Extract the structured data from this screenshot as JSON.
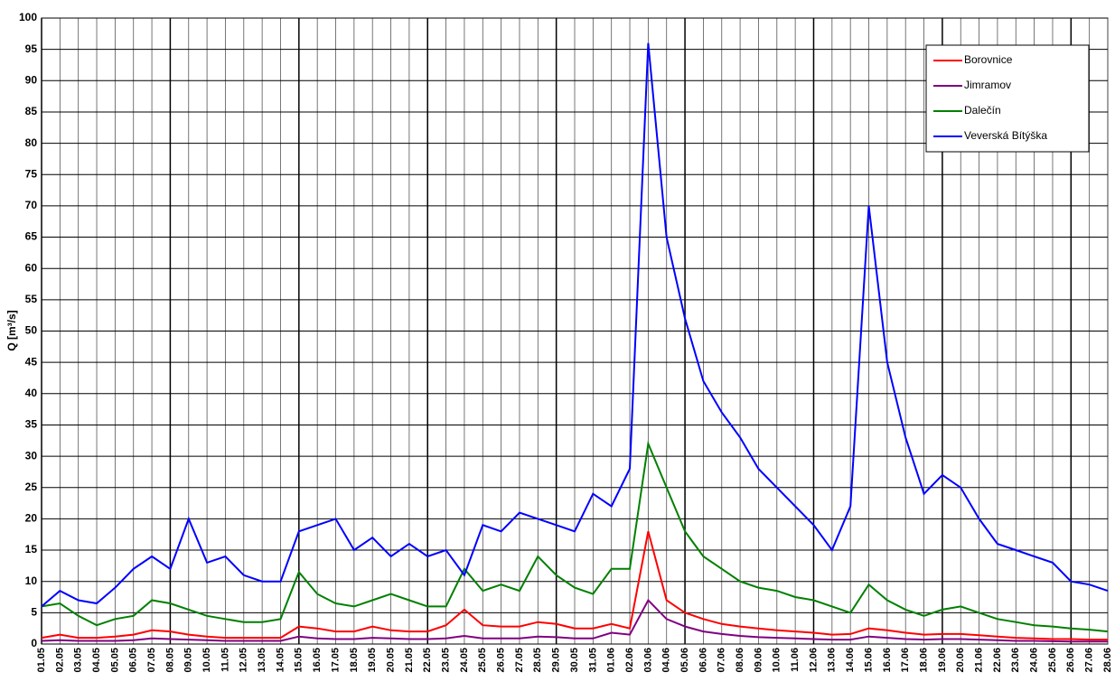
{
  "chart_data": {
    "type": "line",
    "y_label": "Q [m³/s]",
    "categories": [
      "01.05",
      "02.05",
      "03.05",
      "04.05",
      "05.05",
      "06.05",
      "07.05",
      "08.05",
      "09.05",
      "10.05",
      "11.05",
      "12.05",
      "13.05",
      "14.05",
      "15.05",
      "16.05",
      "17.05",
      "18.05",
      "19.05",
      "20.05",
      "21.05",
      "22.05",
      "23.05",
      "24.05",
      "25.05",
      "26.05",
      "27.05",
      "28.05",
      "29.05",
      "30.05",
      "31.05",
      "01.06",
      "02.06",
      "03.06",
      "04.06",
      "05.06",
      "06.06",
      "07.06",
      "08.06",
      "09.06",
      "10.06",
      "11.06",
      "12.06",
      "13.06",
      "14.06",
      "15.06",
      "16.06",
      "17.06",
      "18.06",
      "19.06",
      "20.06",
      "21.06",
      "22.06",
      "23.06",
      "24.06",
      "25.06",
      "26.06",
      "27.06",
      "28.06"
    ],
    "series": [
      {
        "name": "Borovnice",
        "color": "#ff0000",
        "values": [
          1,
          1.5,
          1,
          1,
          1.2,
          1.5,
          2.2,
          2,
          1.5,
          1.2,
          1,
          1,
          1,
          1,
          2.8,
          2.5,
          2,
          2,
          2.8,
          2.2,
          2,
          2,
          3,
          5.5,
          3,
          2.8,
          2.8,
          3.5,
          3.2,
          2.5,
          2.5,
          3.2,
          2.5,
          18,
          7,
          5,
          4,
          3.2,
          2.8,
          2.5,
          2.2,
          2,
          1.8,
          1.5,
          1.6,
          2.5,
          2.2,
          1.8,
          1.5,
          1.6,
          1.6,
          1.4,
          1.2,
          1,
          0.9,
          0.8,
          0.8,
          0.7,
          0.7
        ]
      },
      {
        "name": "Jimramov",
        "color": "#800080",
        "values": [
          0.5,
          0.6,
          0.5,
          0.5,
          0.5,
          0.6,
          0.9,
          0.8,
          0.7,
          0.6,
          0.5,
          0.5,
          0.5,
          0.5,
          1.2,
          0.9,
          0.8,
          0.8,
          1,
          0.9,
          0.8,
          0.8,
          0.9,
          1.3,
          0.9,
          0.9,
          0.9,
          1.2,
          1.1,
          0.9,
          0.9,
          1.8,
          1.5,
          7,
          4,
          2.8,
          2,
          1.6,
          1.3,
          1.1,
          1,
          0.9,
          0.8,
          0.7,
          0.7,
          1.2,
          1,
          0.8,
          0.7,
          0.8,
          0.8,
          0.7,
          0.6,
          0.5,
          0.5,
          0.45,
          0.4,
          0.4,
          0.4
        ]
      },
      {
        "name": "Dalečín",
        "color": "#008000",
        "values": [
          6,
          6.5,
          4.5,
          3,
          4,
          4.5,
          7,
          6.5,
          5.5,
          4.5,
          4,
          3.5,
          3.5,
          4,
          11.5,
          8,
          6.5,
          6,
          7,
          8,
          7,
          6,
          6,
          12,
          8.5,
          9.5,
          8.5,
          14,
          11,
          9,
          8,
          12,
          12,
          32,
          25,
          18,
          14,
          12,
          10,
          9,
          8.5,
          7.5,
          7,
          6,
          5,
          9.5,
          7,
          5.5,
          4.5,
          5.5,
          6,
          5,
          4,
          3.5,
          3,
          2.8,
          2.5,
          2.3,
          2
        ]
      },
      {
        "name": "Veverská Bítýška",
        "color": "#0000ff",
        "values": [
          6,
          8.5,
          7,
          6.5,
          9,
          12,
          14,
          12,
          20,
          13,
          14,
          11,
          10,
          10,
          18,
          19,
          20,
          15,
          17,
          14,
          16,
          14,
          15,
          11,
          19,
          18,
          21,
          20,
          19,
          18,
          24,
          22,
          28,
          96,
          65,
          52,
          42,
          37,
          33,
          28,
          25,
          22,
          19,
          15,
          22,
          70,
          45,
          33,
          24,
          27,
          25,
          20,
          16,
          15,
          14,
          13,
          10,
          9.5,
          8.5
        ]
      }
    ],
    "ylim": [
      0,
      100
    ],
    "yticks": [
      0,
      5,
      10,
      15,
      20,
      25,
      30,
      35,
      40,
      45,
      50,
      55,
      60,
      65,
      70,
      75,
      80,
      85,
      90,
      95,
      100
    ],
    "grid": true,
    "legend": "upper right"
  }
}
